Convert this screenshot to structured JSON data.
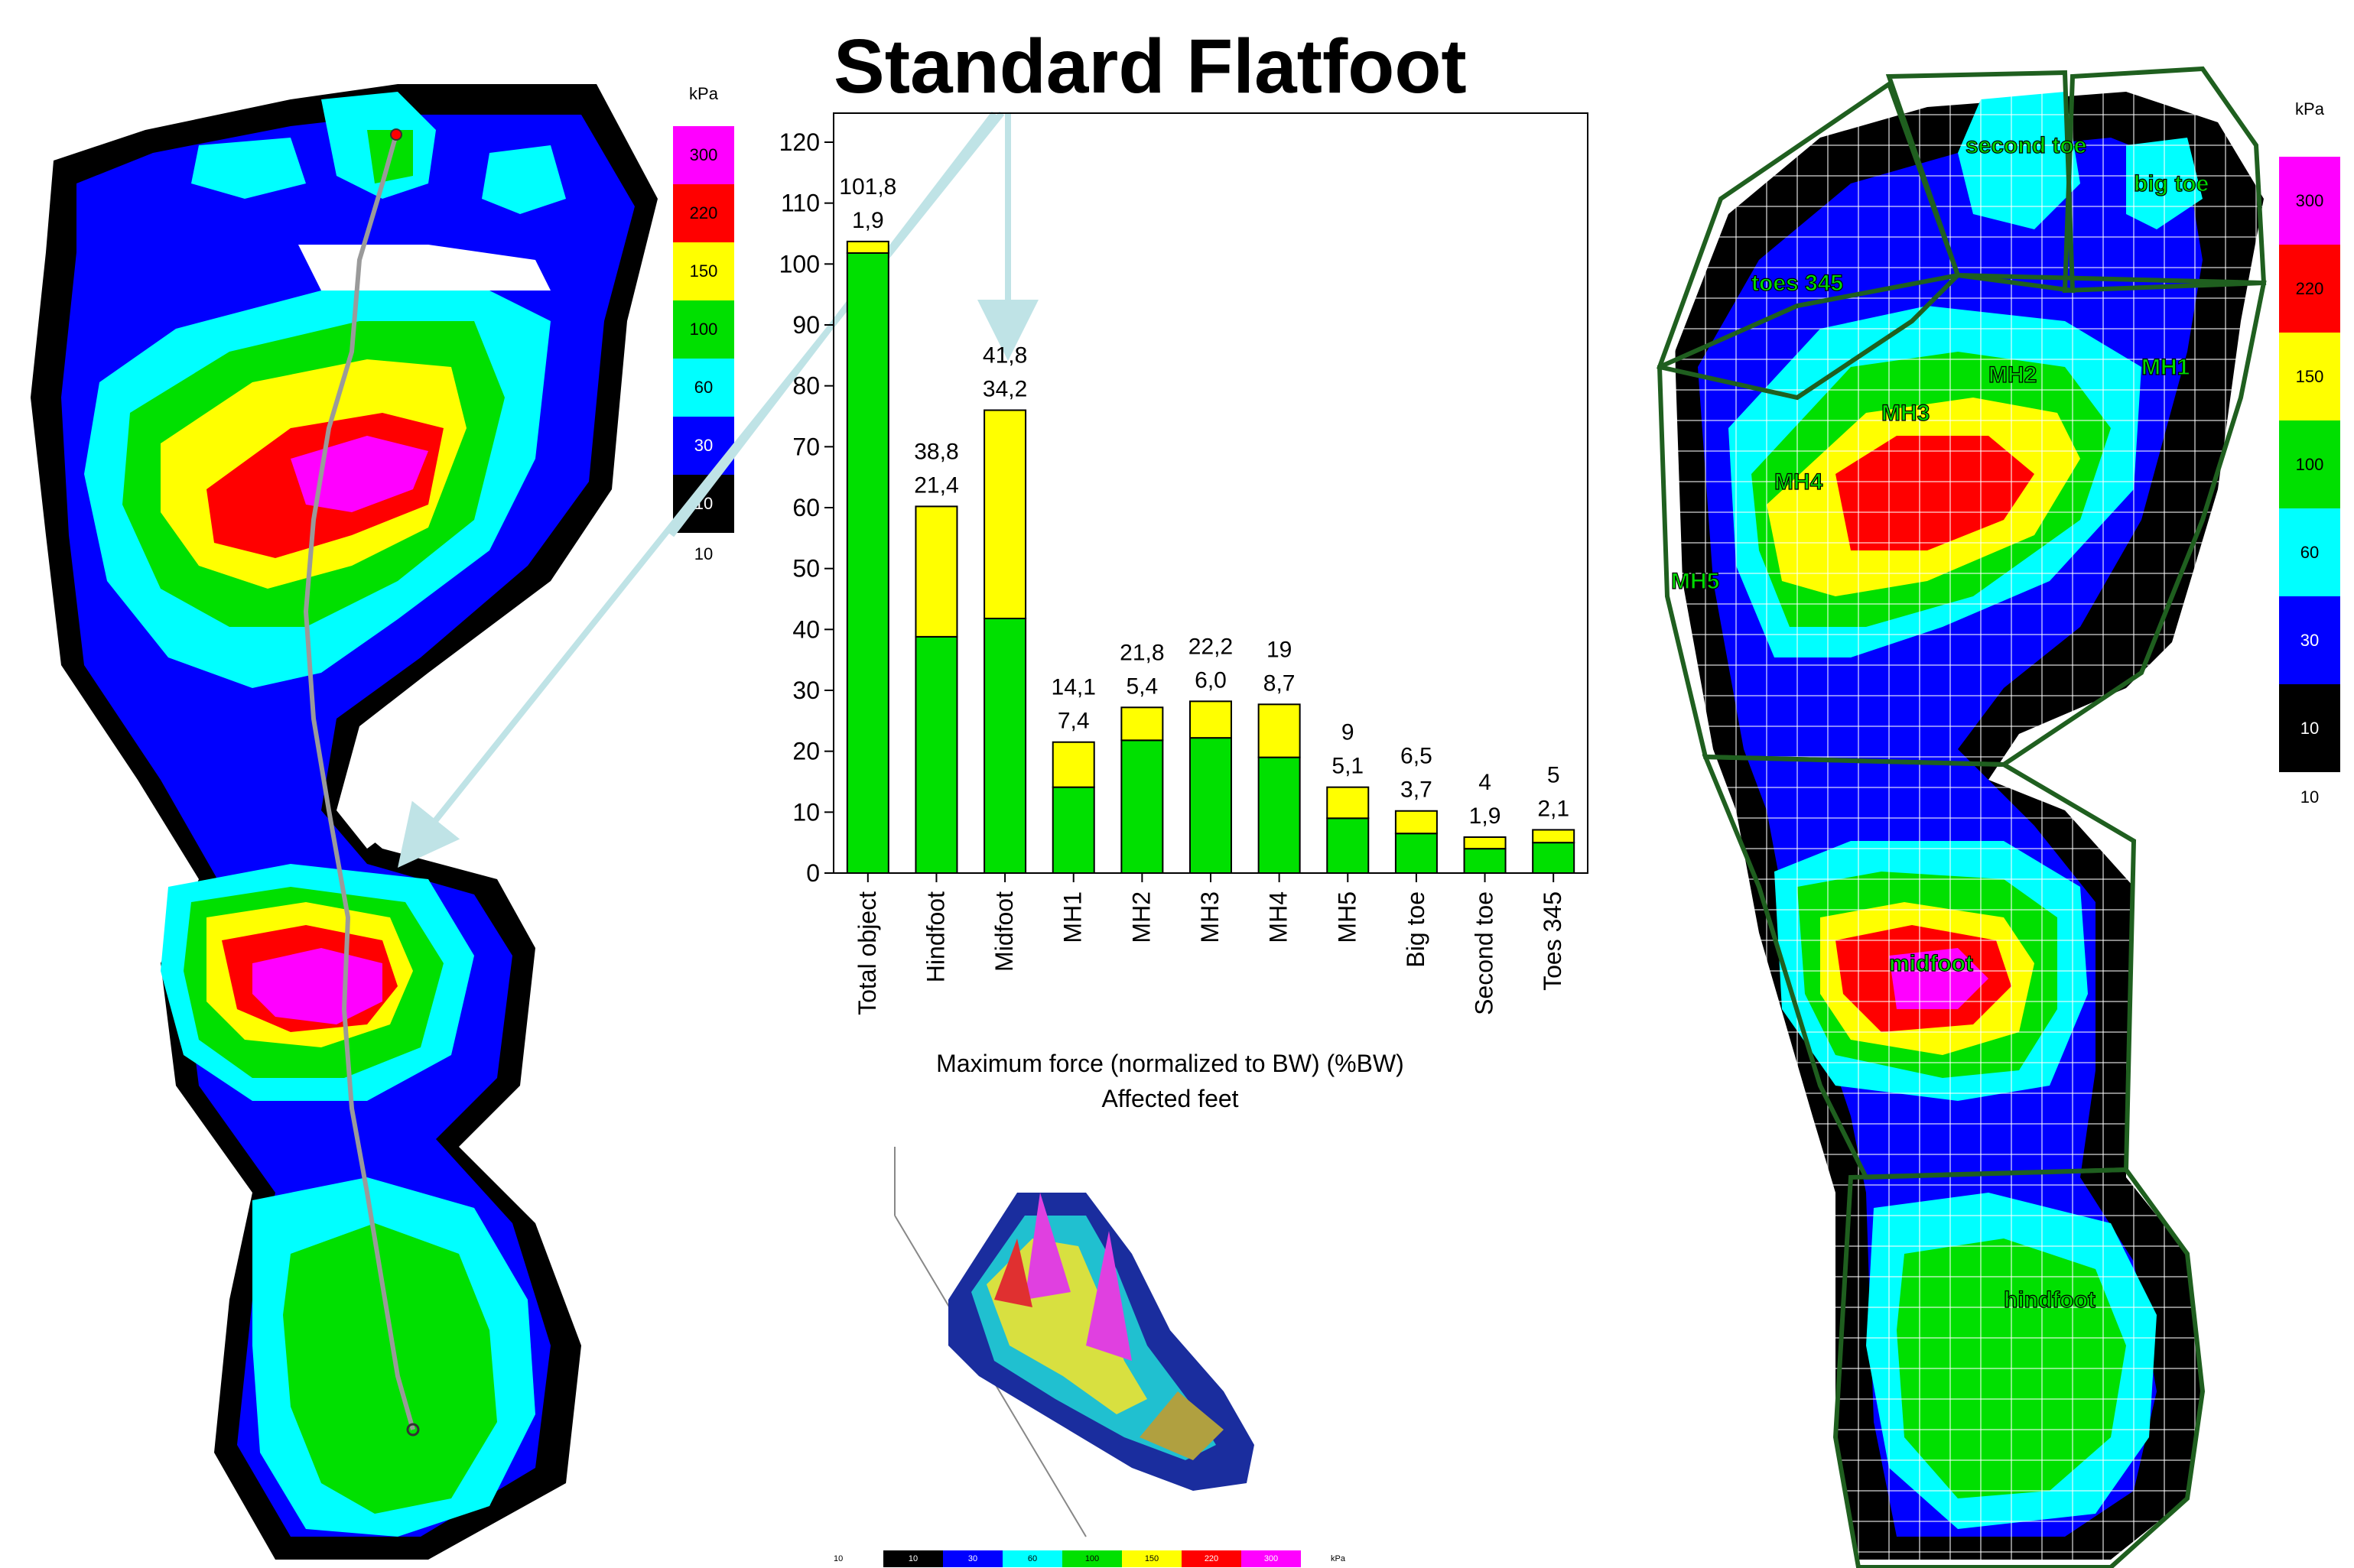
{
  "title": "Standard Flatfoot",
  "scale": {
    "unit": "kPa",
    "levels": [
      "300",
      "220",
      "150",
      "100",
      "60",
      "30",
      "10"
    ],
    "bottom": "10",
    "colors": [
      "#ff00ff",
      "#ff0000",
      "#ffff00",
      "#00e000",
      "#00ffff",
      "#0000ff",
      "#000000"
    ]
  },
  "regions": {
    "second_toe": "second toe",
    "big_toe": "big toe",
    "toes_345": "toes 345",
    "mh1": "MH1",
    "mh2": "MH2",
    "mh3": "MH3",
    "mh4": "MH4",
    "mh5": "MH5",
    "midfoot": "midfoot",
    "hindfoot": "hindfoot"
  },
  "chart_data": {
    "type": "bar",
    "stacked": true,
    "categories": [
      "Total object",
      "Hindfoot",
      "Midfoot",
      "MH1",
      "MH2",
      "MH3",
      "MH4",
      "MH5",
      "Big toe",
      "Second toe",
      "Toes 345"
    ],
    "series": [
      {
        "values": [
          101.8,
          38.8,
          41.8,
          14.1,
          21.8,
          22.2,
          19,
          9,
          6.5,
          4,
          5
        ],
        "color": "#00e000"
      },
      {
        "values": [
          1.9,
          21.4,
          34.2,
          7.4,
          5.4,
          6.0,
          8.7,
          5.1,
          3.7,
          1.9,
          2.1
        ],
        "color": "#ffff00"
      }
    ],
    "label_top": [
      "101,8",
      "38,8",
      "41,8",
      "14,1",
      "21,8",
      "22,2",
      "19",
      "9",
      "6,5",
      "4",
      "5"
    ],
    "label_bottom": [
      "1,9",
      "21,4",
      "34,2",
      "7,4",
      "5,4",
      "6,0",
      "8,7",
      "5,1",
      "3,7",
      "1,9",
      "2,1"
    ],
    "xlabel": "Maximum force (normalized to BW) (%BW)",
    "subtitle": "Affected feet",
    "ylim": [
      0,
      120
    ],
    "yticks": [
      "0",
      "10",
      "20",
      "30",
      "40",
      "50",
      "60",
      "70",
      "80",
      "90",
      "100",
      "110",
      "120"
    ]
  }
}
